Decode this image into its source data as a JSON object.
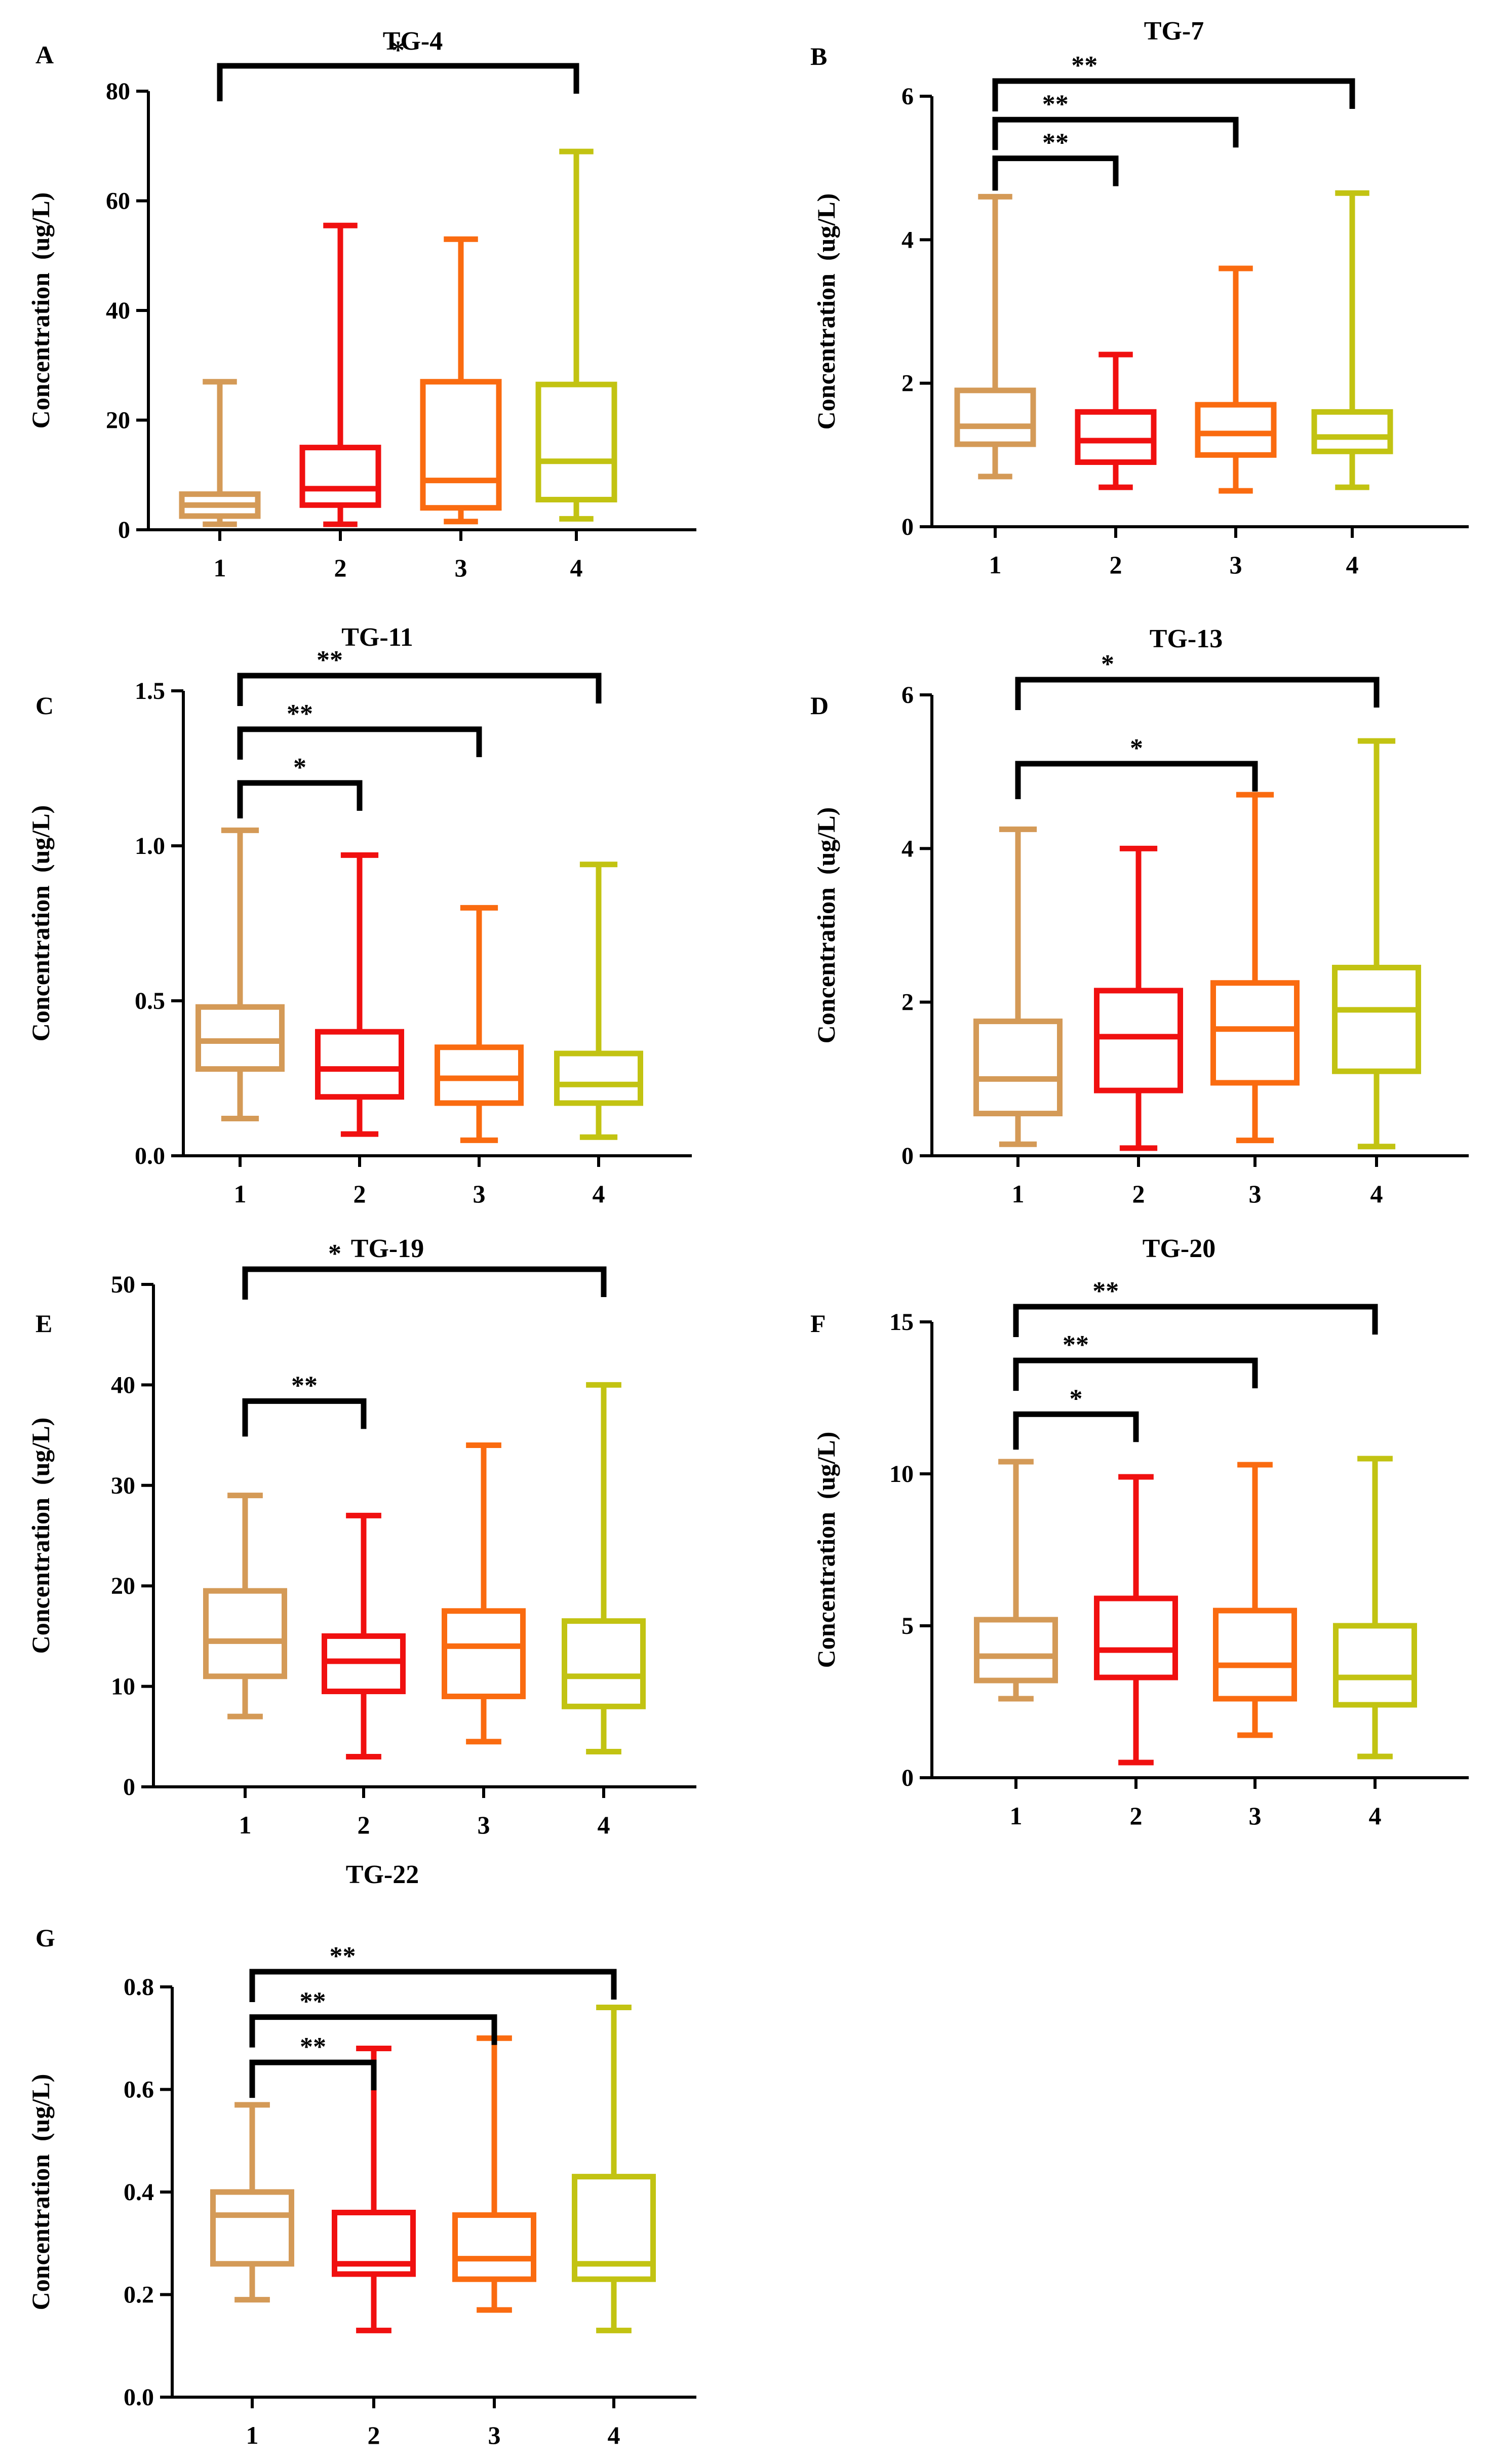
{
  "colors": {
    "group1": "#D49A57",
    "group2": "#F01010",
    "group3": "#FA6B10",
    "group4": "#C2C312",
    "axis": "#000000"
  },
  "chart_data": [
    {
      "type": "boxplot",
      "panel_label": "A",
      "title": "TG-4",
      "xlabel": "",
      "ylabel": "Concentration  (ug/L)",
      "ylim": [
        0,
        80
      ],
      "yticks": [
        0,
        20,
        40,
        60,
        80
      ],
      "ytick_labels": [
        "0",
        "20",
        "40",
        "60",
        "80"
      ],
      "categories": [
        "1",
        "2",
        "3",
        "4"
      ],
      "series": [
        {
          "name": "1",
          "min": 1,
          "q1": 2.5,
          "median": 4.5,
          "q3": 6.5,
          "max": 27
        },
        {
          "name": "2",
          "min": 1,
          "q1": 4.5,
          "median": 7.5,
          "q3": 15,
          "max": 55.5
        },
        {
          "name": "3",
          "min": 1.5,
          "q1": 4,
          "median": 9,
          "q3": 27,
          "max": 53
        },
        {
          "name": "4",
          "min": 2,
          "q1": 5.5,
          "median": 12.5,
          "q3": 26.5,
          "max": 69
        }
      ],
      "significance": [
        {
          "from": 1,
          "to": 4,
          "label": "*",
          "level": 0
        }
      ]
    },
    {
      "type": "boxplot",
      "panel_label": "B",
      "title": "TG-7",
      "xlabel": "",
      "ylabel": "Concentration  (ug/L)",
      "ylim": [
        0,
        6
      ],
      "yticks": [
        0,
        2,
        4,
        6
      ],
      "ytick_labels": [
        "0",
        "2",
        "4",
        "6"
      ],
      "categories": [
        "1",
        "2",
        "3",
        "4"
      ],
      "series": [
        {
          "name": "1",
          "min": 0.7,
          "q1": 1.15,
          "median": 1.4,
          "q3": 1.9,
          "max": 4.6
        },
        {
          "name": "2",
          "min": 0.55,
          "q1": 0.9,
          "median": 1.2,
          "q3": 1.6,
          "max": 2.4
        },
        {
          "name": "3",
          "min": 0.5,
          "q1": 1.0,
          "median": 1.3,
          "q3": 1.7,
          "max": 3.6
        },
        {
          "name": "4",
          "min": 0.55,
          "q1": 1.05,
          "median": 1.25,
          "q3": 1.6,
          "max": 4.65
        }
      ],
      "significance": [
        {
          "from": 1,
          "to": 2,
          "label": "**",
          "level": 0
        },
        {
          "from": 1,
          "to": 3,
          "label": "**",
          "level": 1
        },
        {
          "from": 1,
          "to": 4,
          "label": "**",
          "level": 2
        }
      ]
    },
    {
      "type": "boxplot",
      "panel_label": "C",
      "title": "TG-11",
      "xlabel": "",
      "ylabel": "Concentration  (ug/L)",
      "ylim": [
        0,
        1.5
      ],
      "yticks": [
        0,
        0.5,
        1.0,
        1.5
      ],
      "ytick_labels": [
        "0.0",
        "0.5",
        "1.0",
        "1.5"
      ],
      "categories": [
        "1",
        "2",
        "3",
        "4"
      ],
      "series": [
        {
          "name": "1",
          "min": 0.12,
          "q1": 0.28,
          "median": 0.37,
          "q3": 0.48,
          "max": 1.05
        },
        {
          "name": "2",
          "min": 0.07,
          "q1": 0.19,
          "median": 0.28,
          "q3": 0.4,
          "max": 0.97
        },
        {
          "name": "3",
          "min": 0.05,
          "q1": 0.17,
          "median": 0.25,
          "q3": 0.35,
          "max": 0.8
        },
        {
          "name": "4",
          "min": 0.06,
          "q1": 0.17,
          "median": 0.23,
          "q3": 0.33,
          "max": 0.94
        }
      ],
      "significance": [
        {
          "from": 1,
          "to": 2,
          "label": "*",
          "level": 0
        },
        {
          "from": 1,
          "to": 3,
          "label": "**",
          "level": 1
        },
        {
          "from": 1,
          "to": 4,
          "label": "**",
          "level": 2
        }
      ]
    },
    {
      "type": "boxplot",
      "panel_label": "D",
      "title": "TG-13",
      "xlabel": "",
      "ylabel": "Concentration  (ug/L)",
      "ylim": [
        0,
        6
      ],
      "yticks": [
        0,
        2,
        4,
        6
      ],
      "ytick_labels": [
        "0",
        "2",
        "4",
        "6"
      ],
      "categories": [
        "1",
        "2",
        "3",
        "4"
      ],
      "series": [
        {
          "name": "1",
          "min": 0.15,
          "q1": 0.55,
          "median": 1.0,
          "q3": 1.75,
          "max": 4.25
        },
        {
          "name": "2",
          "min": 0.1,
          "q1": 0.85,
          "median": 1.55,
          "q3": 2.15,
          "max": 4.0
        },
        {
          "name": "3",
          "min": 0.2,
          "q1": 0.95,
          "median": 1.65,
          "q3": 2.25,
          "max": 4.7
        },
        {
          "name": "4",
          "min": 0.12,
          "q1": 1.1,
          "median": 1.9,
          "q3": 2.45,
          "max": 5.4
        }
      ],
      "significance": [
        {
          "from": 1,
          "to": 3,
          "label": "*",
          "level": 0
        },
        {
          "from": 1,
          "to": 4,
          "label": "*",
          "level": 1
        }
      ]
    },
    {
      "type": "boxplot",
      "panel_label": "E",
      "title": "TG-19",
      "xlabel": "",
      "ylabel": "Concentration  (ug/L)",
      "ylim": [
        0,
        50
      ],
      "yticks": [
        0,
        10,
        20,
        30,
        40,
        50
      ],
      "ytick_labels": [
        "0",
        "10",
        "20",
        "30",
        "40",
        "50"
      ],
      "categories": [
        "1",
        "2",
        "3",
        "4"
      ],
      "series": [
        {
          "name": "1",
          "min": 7,
          "q1": 11,
          "median": 14.5,
          "q3": 19.5,
          "max": 29
        },
        {
          "name": "2",
          "min": 3,
          "q1": 9.5,
          "median": 12.5,
          "q3": 15,
          "max": 27
        },
        {
          "name": "3",
          "min": 4.5,
          "q1": 9,
          "median": 14,
          "q3": 17.5,
          "max": 34
        },
        {
          "name": "4",
          "min": 3.5,
          "q1": 8,
          "median": 11,
          "q3": 16.5,
          "max": 40
        }
      ],
      "significance": [
        {
          "from": 1,
          "to": 2,
          "label": "**",
          "level": 0
        },
        {
          "from": 1,
          "to": 4,
          "label": "*",
          "level": 1
        }
      ]
    },
    {
      "type": "boxplot",
      "panel_label": "F",
      "title": "TG-20",
      "xlabel": "",
      "ylabel": "Concentration  (ug/L)",
      "ylim": [
        0,
        15
      ],
      "yticks": [
        0,
        5,
        10,
        15
      ],
      "ytick_labels": [
        "0",
        "5",
        "10",
        "15"
      ],
      "categories": [
        "1",
        "2",
        "3",
        "4"
      ],
      "series": [
        {
          "name": "1",
          "min": 2.6,
          "q1": 3.2,
          "median": 4.0,
          "q3": 5.2,
          "max": 10.4
        },
        {
          "name": "2",
          "min": 0.5,
          "q1": 3.3,
          "median": 4.2,
          "q3": 5.9,
          "max": 9.9
        },
        {
          "name": "3",
          "min": 1.4,
          "q1": 2.6,
          "median": 3.7,
          "q3": 5.5,
          "max": 10.3
        },
        {
          "name": "4",
          "min": 0.7,
          "q1": 2.4,
          "median": 3.3,
          "q3": 5.0,
          "max": 10.5
        }
      ],
      "significance": [
        {
          "from": 1,
          "to": 2,
          "label": "*",
          "level": 0
        },
        {
          "from": 1,
          "to": 3,
          "label": "**",
          "level": 1
        },
        {
          "from": 1,
          "to": 4,
          "label": "**",
          "level": 2
        }
      ]
    },
    {
      "type": "boxplot",
      "panel_label": "G",
      "title": "TG-22",
      "xlabel": "",
      "ylabel": "Concentration  (ug/L)",
      "ylim": [
        0,
        0.8
      ],
      "yticks": [
        0,
        0.2,
        0.4,
        0.6,
        0.8
      ],
      "ytick_labels": [
        "0.0",
        "0.2",
        "0.4",
        "0.6",
        "0.8"
      ],
      "categories": [
        "1",
        "2",
        "3",
        "4"
      ],
      "series": [
        {
          "name": "1",
          "min": 0.19,
          "q1": 0.26,
          "median": 0.355,
          "q3": 0.4,
          "max": 0.57
        },
        {
          "name": "2",
          "min": 0.13,
          "q1": 0.24,
          "median": 0.26,
          "q3": 0.36,
          "max": 0.68
        },
        {
          "name": "3",
          "min": 0.17,
          "q1": 0.23,
          "median": 0.27,
          "q3": 0.355,
          "max": 0.7
        },
        {
          "name": "4",
          "min": 0.13,
          "q1": 0.23,
          "median": 0.26,
          "q3": 0.43,
          "max": 0.76
        }
      ],
      "significance": [
        {
          "from": 1,
          "to": 2,
          "label": "**",
          "level": 0
        },
        {
          "from": 1,
          "to": 3,
          "label": "**",
          "level": 1
        },
        {
          "from": 1,
          "to": 4,
          "label": "**",
          "level": 2
        }
      ]
    }
  ]
}
